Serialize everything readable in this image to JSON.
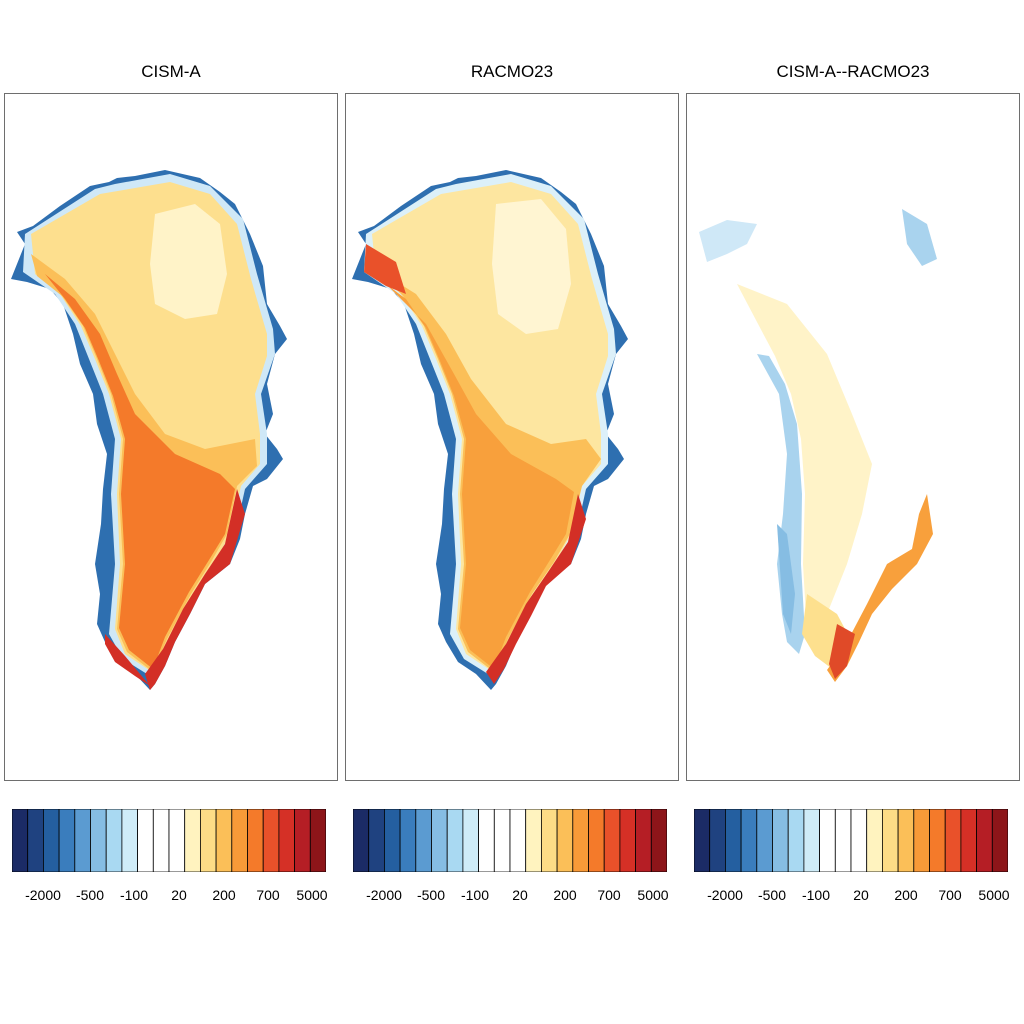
{
  "colorbar": {
    "colors": [
      "#1b2b66",
      "#1f4280",
      "#245fa0",
      "#3a7dbd",
      "#5b9bd1",
      "#86bde3",
      "#a9d9f2",
      "#cfecf8",
      "#ffffff",
      "#ffffff",
      "#ffffff",
      "#fff3bf",
      "#fddc86",
      "#fbbf58",
      "#f89a38",
      "#f47a2a",
      "#e9512a",
      "#d53026",
      "#b51e25",
      "#8d1519"
    ],
    "tick_labels": [
      "-2000",
      "-500",
      "-100",
      "20",
      "200",
      "700",
      "5000"
    ]
  },
  "panels": [
    {
      "title": "CISM-A",
      "colormap": "field"
    },
    {
      "title": "RACMO23",
      "colormap": "field"
    },
    {
      "title": "CISM-A--RACMO23",
      "colormap": "difference"
    }
  ]
}
